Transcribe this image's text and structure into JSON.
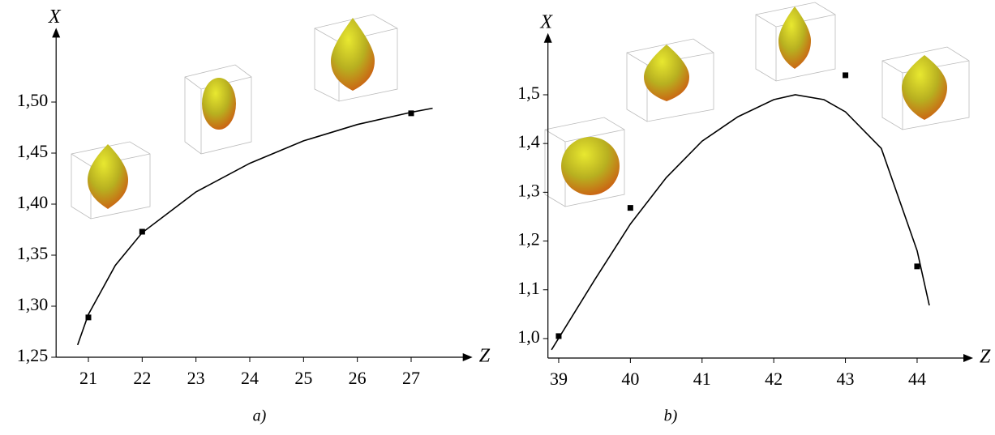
{
  "chart_data": [
    {
      "type": "line",
      "x_label": "Z",
      "y_label": "X",
      "caption": "a)",
      "xlim": [
        20.4,
        27.9
      ],
      "ylim": [
        1.25,
        1.56
      ],
      "xticks": [
        21,
        22,
        23,
        24,
        25,
        26,
        27
      ],
      "yticks": [
        {
          "value": 1.25,
          "label": "1,25"
        },
        {
          "value": 1.3,
          "label": "1,30"
        },
        {
          "value": 1.35,
          "label": "1,35"
        },
        {
          "value": 1.4,
          "label": "1,40"
        },
        {
          "value": 1.45,
          "label": "1,45"
        },
        {
          "value": 1.5,
          "label": "1,50"
        }
      ],
      "series": [
        {
          "color": "#000000",
          "marker": "none",
          "x": [
            20.8,
            21,
            21.5,
            22,
            23,
            24,
            25,
            26,
            27,
            27.4
          ],
          "values": [
            1.262,
            1.292,
            1.34,
            1.372,
            1.412,
            1.44,
            1.462,
            1.478,
            1.49,
            1.494
          ]
        },
        {
          "color": "#000000",
          "marker": "square",
          "x": [
            21,
            22,
            27
          ],
          "values": [
            1.289,
            1.373,
            1.489
          ]
        }
      ]
    },
    {
      "type": "line",
      "x_label": "Z",
      "y_label": "X",
      "caption": "b)",
      "xlim": [
        38.85,
        44.6
      ],
      "ylim": [
        0.96,
        1.6
      ],
      "xticks": [
        39,
        40,
        41,
        42,
        43,
        44
      ],
      "yticks": [
        {
          "value": 1.0,
          "label": "1,0"
        },
        {
          "value": 1.1,
          "label": "1,1"
        },
        {
          "value": 1.2,
          "label": "1,2"
        },
        {
          "value": 1.3,
          "label": "1,3"
        },
        {
          "value": 1.4,
          "label": "1,4"
        },
        {
          "value": 1.5,
          "label": "1,5"
        }
      ],
      "series": [
        {
          "color": "#000000",
          "marker": "none",
          "x": [
            38.9,
            39.5,
            40,
            40.5,
            41,
            41.5,
            42,
            42.3,
            42.7,
            43,
            43.5,
            44,
            44.17
          ],
          "values": [
            0.977,
            1.12,
            1.235,
            1.33,
            1.405,
            1.455,
            1.49,
            1.5,
            1.49,
            1.465,
            1.39,
            1.18,
            1.068
          ]
        },
        {
          "color": "#000000",
          "marker": "square",
          "x": [
            39,
            40,
            43,
            44
          ],
          "values": [
            1.005,
            1.268,
            1.54,
            1.148
          ]
        }
      ]
    }
  ]
}
